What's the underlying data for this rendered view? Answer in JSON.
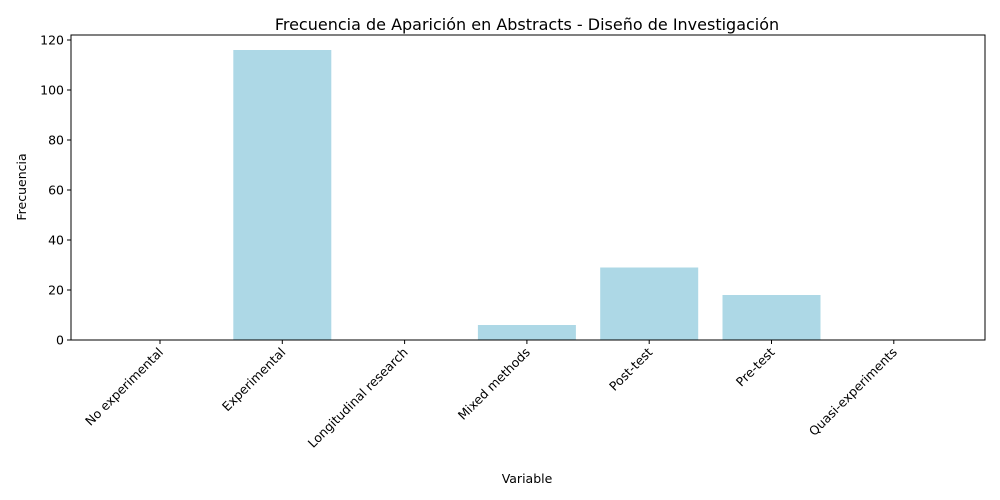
{
  "chart_data": {
    "type": "bar",
    "title": "Frecuencia de Aparición en Abstracts - Diseño de Investigación",
    "xlabel": "Variable",
    "ylabel": "Frecuencia",
    "categories": [
      "No experimental",
      "Experimental",
      "Longitudinal research",
      "Mixed methods",
      "Post-test",
      "Pre-test",
      "Quasi-experiments"
    ],
    "values": [
      0,
      116,
      0,
      6,
      29,
      18,
      0
    ],
    "ylim": [
      0,
      122
    ],
    "yticks": [
      0,
      20,
      40,
      60,
      80,
      100,
      120
    ],
    "bar_color": "#add8e6",
    "grid": false,
    "legend": "none"
  }
}
